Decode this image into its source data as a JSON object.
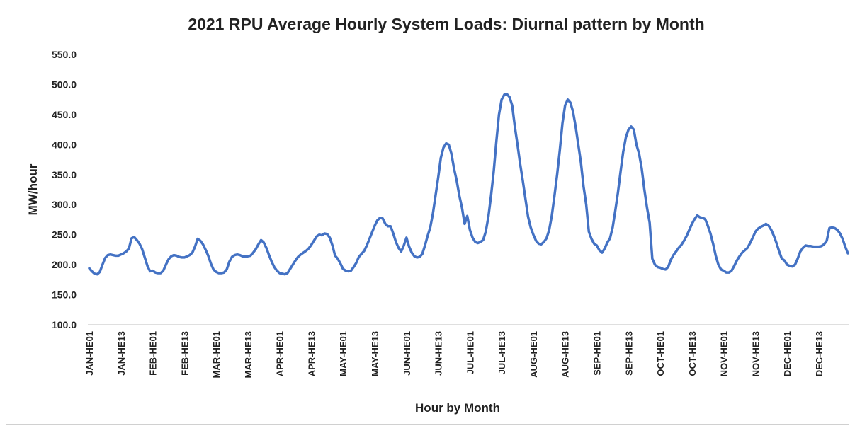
{
  "chart_data": {
    "type": "line",
    "title": "2021 RPU Average Hourly System Loads: Diurnal pattern by Month",
    "x_label": "Hour by Month",
    "y_label": "MW/hour",
    "color": "#4472c4",
    "ylim": [
      100,
      550
    ],
    "yticks": [
      {
        "value": 100,
        "label": "100.0"
      },
      {
        "value": 150,
        "label": "150.0"
      },
      {
        "value": 200,
        "label": "200.0"
      },
      {
        "value": 250,
        "label": "250.0"
      },
      {
        "value": 300,
        "label": "300.0"
      },
      {
        "value": 350,
        "label": "350.0"
      },
      {
        "value": 400,
        "label": "400.0"
      },
      {
        "value": 450,
        "label": "450.0"
      },
      {
        "value": 500,
        "label": "500.0"
      },
      {
        "value": 550,
        "label": "550.0"
      }
    ],
    "grid": false,
    "categories": [
      "JAN-HE01",
      null,
      null,
      null,
      null,
      null,
      null,
      null,
      null,
      null,
      null,
      null,
      "JAN-HE13",
      null,
      null,
      null,
      null,
      null,
      null,
      null,
      null,
      null,
      null,
      null,
      "FEB-HE01",
      null,
      null,
      null,
      null,
      null,
      null,
      null,
      null,
      null,
      null,
      null,
      "FEB-HE13",
      null,
      null,
      null,
      null,
      null,
      null,
      null,
      null,
      null,
      null,
      null,
      "MAR-HE01",
      null,
      null,
      null,
      null,
      null,
      null,
      null,
      null,
      null,
      null,
      null,
      "MAR-HE13",
      null,
      null,
      null,
      null,
      null,
      null,
      null,
      null,
      null,
      null,
      null,
      "APR-HE01",
      null,
      null,
      null,
      null,
      null,
      null,
      null,
      null,
      null,
      null,
      null,
      "APR-HE13",
      null,
      null,
      null,
      null,
      null,
      null,
      null,
      null,
      null,
      null,
      null,
      "MAY-HE01",
      null,
      null,
      null,
      null,
      null,
      null,
      null,
      null,
      null,
      null,
      null,
      "MAY-HE13",
      null,
      null,
      null,
      null,
      null,
      null,
      null,
      null,
      null,
      null,
      null,
      "JUN-HE01",
      null,
      null,
      null,
      null,
      null,
      null,
      null,
      null,
      null,
      null,
      null,
      "JUN-HE13",
      null,
      null,
      null,
      null,
      null,
      null,
      null,
      null,
      null,
      null,
      null,
      "JUL-HE01",
      null,
      null,
      null,
      null,
      null,
      null,
      null,
      null,
      null,
      null,
      null,
      "JUL-HE13",
      null,
      null,
      null,
      null,
      null,
      null,
      null,
      null,
      null,
      null,
      null,
      "AUG-HE01",
      null,
      null,
      null,
      null,
      null,
      null,
      null,
      null,
      null,
      null,
      null,
      "AUG-HE13",
      null,
      null,
      null,
      null,
      null,
      null,
      null,
      null,
      null,
      null,
      null,
      "SEP-HE01",
      null,
      null,
      null,
      null,
      null,
      null,
      null,
      null,
      null,
      null,
      null,
      "SEP-HE13",
      null,
      null,
      null,
      null,
      null,
      null,
      null,
      null,
      null,
      null,
      null,
      "OCT-HE01",
      null,
      null,
      null,
      null,
      null,
      null,
      null,
      null,
      null,
      null,
      null,
      "OCT-HE13",
      null,
      null,
      null,
      null,
      null,
      null,
      null,
      null,
      null,
      null,
      null,
      "NOV-HE01",
      null,
      null,
      null,
      null,
      null,
      null,
      null,
      null,
      null,
      null,
      null,
      "NOV-HE13",
      null,
      null,
      null,
      null,
      null,
      null,
      null,
      null,
      null,
      null,
      null,
      "DEC-HE01",
      null,
      null,
      null,
      null,
      null,
      null,
      null,
      null,
      null,
      null,
      null,
      "DEC-HE13",
      null,
      null,
      null,
      null,
      null,
      null,
      null,
      null,
      null,
      null,
      null
    ],
    "values": [
      194,
      189,
      185,
      184,
      188,
      200,
      211,
      216,
      217,
      216,
      215,
      215,
      217,
      219,
      222,
      227,
      244,
      246,
      241,
      235,
      226,
      212,
      198,
      189,
      190,
      187,
      186,
      186,
      190,
      200,
      209,
      214,
      216,
      215,
      213,
      212,
      212,
      214,
      216,
      220,
      230,
      243,
      240,
      234,
      225,
      215,
      202,
      192,
      188,
      186,
      186,
      187,
      192,
      205,
      213,
      216,
      217,
      216,
      214,
      214,
      214,
      215,
      220,
      226,
      234,
      241,
      237,
      228,
      216,
      205,
      196,
      190,
      186,
      185,
      184,
      186,
      193,
      200,
      207,
      213,
      217,
      220,
      223,
      227,
      233,
      240,
      247,
      250,
      249,
      252,
      251,
      245,
      232,
      215,
      210,
      202,
      193,
      190,
      189,
      190,
      196,
      203,
      213,
      218,
      223,
      232,
      243,
      254,
      265,
      274,
      278,
      277,
      268,
      264,
      264,
      252,
      238,
      228,
      222,
      232,
      245,
      230,
      220,
      214,
      212,
      213,
      218,
      232,
      248,
      262,
      285,
      315,
      345,
      378,
      395,
      402,
      400,
      385,
      360,
      340,
      315,
      295,
      268,
      281,
      258,
      245,
      238,
      236,
      238,
      241,
      255,
      280,
      315,
      355,
      405,
      450,
      475,
      483,
      484,
      479,
      465,
      430,
      400,
      368,
      340,
      310,
      280,
      262,
      250,
      240,
      235,
      234,
      238,
      244,
      258,
      282,
      315,
      350,
      390,
      435,
      465,
      475,
      470,
      455,
      430,
      400,
      370,
      330,
      300,
      255,
      243,
      235,
      232,
      224,
      220,
      227,
      237,
      244,
      262,
      290,
      320,
      355,
      388,
      412,
      425,
      430,
      425,
      400,
      385,
      360,
      325,
      295,
      270,
      210,
      200,
      196,
      195,
      193,
      192,
      196,
      208,
      216,
      222,
      228,
      233,
      240,
      248,
      258,
      268,
      276,
      282,
      279,
      278,
      276,
      265,
      252,
      235,
      215,
      200,
      192,
      190,
      187,
      187,
      190,
      198,
      207,
      214,
      220,
      224,
      228,
      236,
      245,
      255,
      260,
      263,
      265,
      268,
      265,
      258,
      248,
      236,
      222,
      210,
      207,
      200,
      198,
      197,
      200,
      210,
      222,
      228,
      232,
      231,
      231,
      230,
      230,
      230,
      231,
      234,
      240,
      261,
      262,
      261,
      258,
      252,
      243,
      230,
      219
    ]
  }
}
